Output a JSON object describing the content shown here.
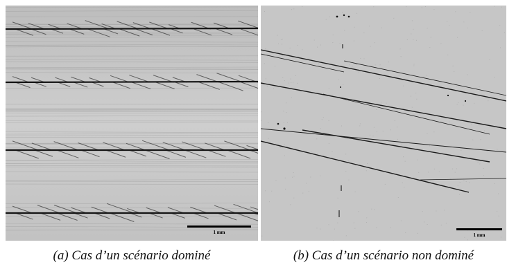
{
  "figure": {
    "panel_a": {
      "scale_label": "1 mm",
      "caption": "(a) Cas d’un scénario dominé"
    },
    "panel_b": {
      "scale_label": "1 mm",
      "caption": "(b) Cas d’un scénario non dominé"
    }
  },
  "colors": {
    "panel_a_background": "#c9c9c9",
    "panel_b_background": "#c4c4c4",
    "crack_color": "#1a1a1a"
  }
}
